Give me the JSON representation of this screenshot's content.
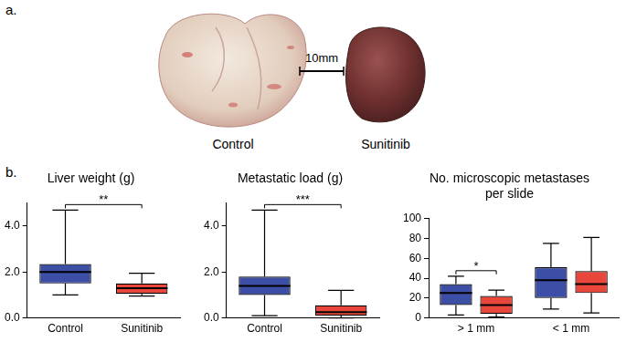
{
  "panel_a": {
    "label": "a.",
    "images": [
      "Control",
      "Sunitinib"
    ],
    "scale_bar": "10mm"
  },
  "panel_b": {
    "label": "b."
  },
  "chart_data": [
    {
      "type": "boxplot",
      "title": "Liver weight (g)",
      "categories": [
        "Control",
        "Sunitinib"
      ],
      "values": [
        {
          "min": 1.0,
          "q1": 1.5,
          "median": 2.0,
          "q3": 2.35,
          "max": 4.7
        },
        {
          "min": 0.95,
          "q1": 1.05,
          "median": 1.3,
          "q3": 1.5,
          "max": 1.95
        }
      ],
      "colors": [
        "#3c4ea5",
        "#e9473b"
      ],
      "ylim": [
        0,
        5
      ],
      "yticks": [
        {
          "value": 0,
          "label": "0.0"
        },
        {
          "value": 2,
          "label": "2.0"
        },
        {
          "value": 4,
          "label": "4.0"
        }
      ],
      "grid": false,
      "significance": [
        {
          "label": "**",
          "categories": [
            "Control",
            "Sunitinib"
          ]
        }
      ]
    },
    {
      "type": "boxplot",
      "title": "Metastatic load (g)",
      "categories": [
        "Control",
        "Sunitinib"
      ],
      "values": [
        {
          "min": 0.1,
          "q1": 1.0,
          "median": 1.4,
          "q3": 1.8,
          "max": 4.7
        },
        {
          "min": 0.0,
          "q1": 0.1,
          "median": 0.25,
          "q3": 0.55,
          "max": 1.2
        }
      ],
      "colors": [
        "#3c4ea5",
        "#e9473b"
      ],
      "ylim": [
        0,
        5
      ],
      "yticks": [
        {
          "value": 0,
          "label": "0.0"
        },
        {
          "value": 2,
          "label": "2.0"
        },
        {
          "value": 4,
          "label": "4.0"
        }
      ],
      "grid": false,
      "significance": [
        {
          "label": "***",
          "categories": [
            "Control",
            "Sunitinib"
          ]
        }
      ]
    },
    {
      "type": "boxplot",
      "title": [
        "No. microscopic metastases",
        "per slide"
      ],
      "categories": [
        "> 1 mm",
        "< 1 mm"
      ],
      "series": [
        {
          "color": "#3c4ea5",
          "values": [
            {
              "min": 3,
              "q1": 13,
              "median": 25,
              "q3": 34,
              "max": 42
            },
            {
              "min": 9,
              "q1": 20,
              "median": 38,
              "q3": 51,
              "max": 75
            }
          ]
        },
        {
          "color": "#e9473b",
          "values": [
            {
              "min": 1,
              "q1": 4,
              "median": 13,
              "q3": 22,
              "max": 28
            },
            {
              "min": 5,
              "q1": 25,
              "median": 34,
              "q3": 47,
              "max": 81
            }
          ]
        }
      ],
      "ylim": [
        0,
        100
      ],
      "yticks": [
        0,
        20,
        40,
        60,
        80,
        100
      ],
      "grid": false,
      "significance": [
        {
          "label": "*",
          "category": "> 1 mm"
        }
      ]
    }
  ]
}
